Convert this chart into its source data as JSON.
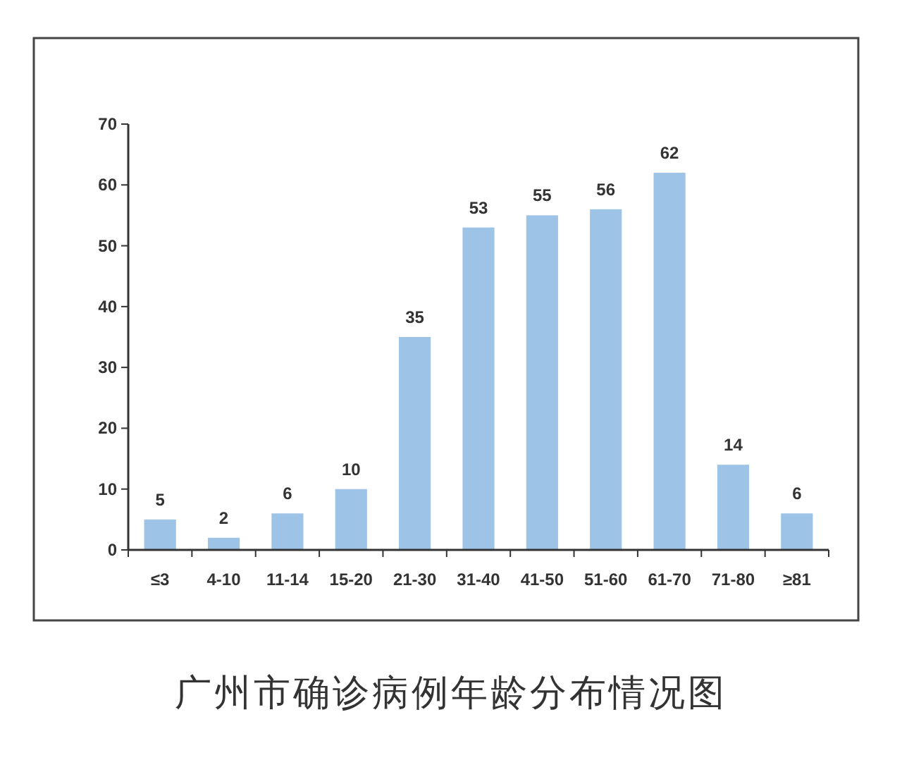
{
  "chart_data": {
    "type": "bar",
    "title": "广州市确诊病例年龄分布情况图",
    "categories": [
      "≤3",
      "4-10",
      "11-14",
      "15-20",
      "21-30",
      "31-40",
      "41-50",
      "51-60",
      "61-70",
      "71-80",
      "≥81"
    ],
    "values": [
      5,
      2,
      6,
      10,
      35,
      53,
      55,
      56,
      62,
      14,
      6
    ],
    "color": "#9dc3e6",
    "ylim": [
      0,
      70
    ],
    "yticks": [
      0,
      10,
      20,
      30,
      40,
      50,
      60,
      70
    ],
    "data_labels": true
  }
}
